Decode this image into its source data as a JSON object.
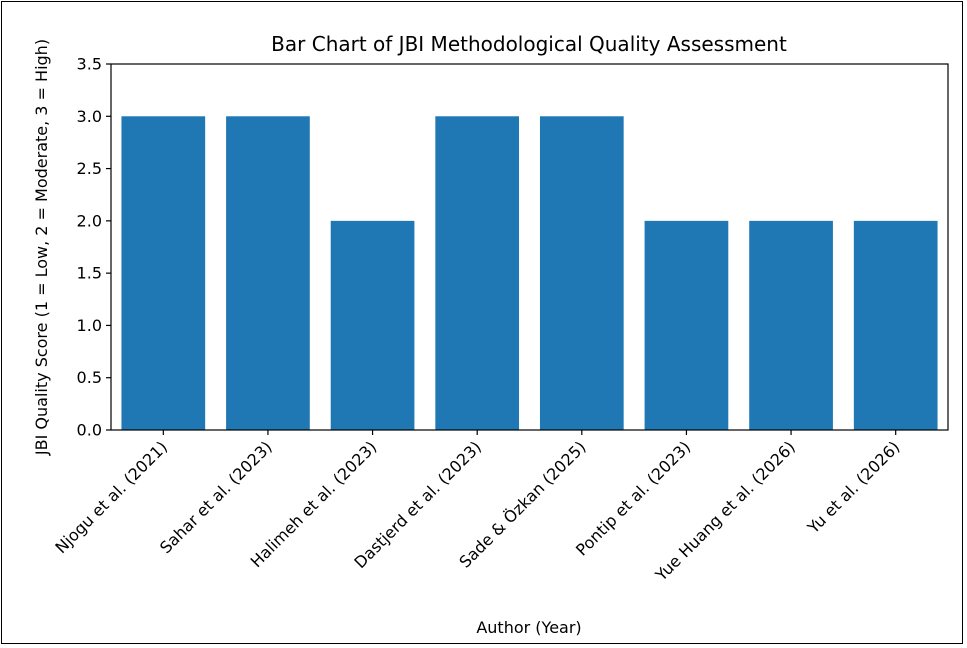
{
  "chart_data": {
    "type": "bar",
    "title": "Bar Chart of JBI Methodological Quality Assessment",
    "xlabel": "Author (Year)",
    "ylabel": "JBI Quality Score (1 = Low, 2 = Moderate, 3 = High)",
    "categories": [
      "Njogu et al. (2021)",
      "Sahar et al. (2023)",
      "Halimeh et al. (2023)",
      "Dastjerd et al. (2023)",
      "Sade & Özkan (2025)",
      "Pontip et al. (2023)",
      "Yue Huang et al. (2026)",
      "Yu et al. (2026)"
    ],
    "values": [
      3,
      3,
      2,
      3,
      3,
      2,
      2,
      2
    ],
    "ylim": [
      0,
      3.5
    ],
    "yticks": [
      "0.0",
      "0.5",
      "1.0",
      "1.5",
      "2.0",
      "2.5",
      "3.0",
      "3.5"
    ],
    "grid": false,
    "bar_color": "#1f77b4"
  }
}
